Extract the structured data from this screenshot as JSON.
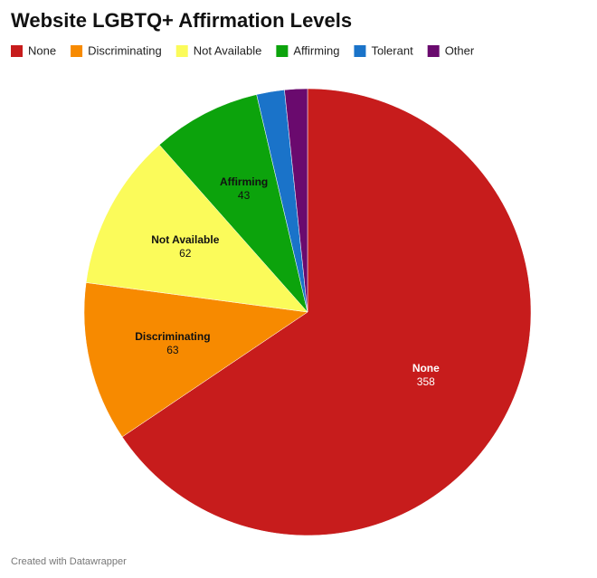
{
  "chart_data": {
    "type": "pie",
    "title": "Website LGBTQ+ Affirmation Levels",
    "categories": [
      "None",
      "Discriminating",
      "Not Available",
      "Affirming",
      "Tolerant",
      "Other"
    ],
    "values": [
      358,
      63,
      62,
      43,
      11,
      9
    ],
    "colors": [
      "#c71c1c",
      "#f78a00",
      "#fbfb5a",
      "#0ca30c",
      "#1a73c9",
      "#6a0a6e"
    ],
    "footer": "Created with Datawrapper"
  }
}
